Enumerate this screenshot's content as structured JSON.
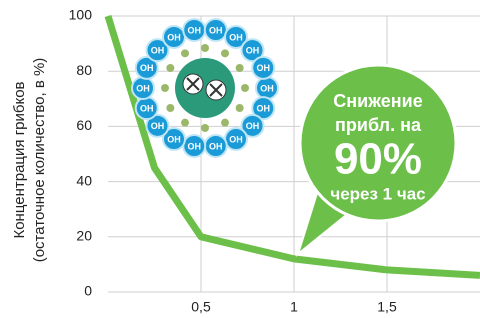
{
  "chart_data": {
    "type": "line",
    "y_label_lines": [
      "Концентрация грибков",
      "(остаточное количество, в %)"
    ],
    "x": [
      0,
      0.25,
      0.5,
      1,
      1.5,
      2
    ],
    "series": [
      {
        "color": "#6cc04a",
        "values": [
          100,
          45,
          20,
          12,
          8,
          6
        ]
      }
    ],
    "xlim": [
      0,
      2
    ],
    "ylim": [
      0,
      100
    ],
    "xticks": [
      {
        "value": 0.5,
        "label": "0,5"
      },
      1,
      {
        "value": 1.5,
        "label": "1,5"
      }
    ],
    "yticks": [
      0,
      20,
      40,
      60,
      80,
      100
    ],
    "grid": true,
    "annotation_lines": [
      "Снижение",
      "прибл. на",
      "90%",
      "через 1 час"
    ],
    "illustration_label": "OH"
  }
}
